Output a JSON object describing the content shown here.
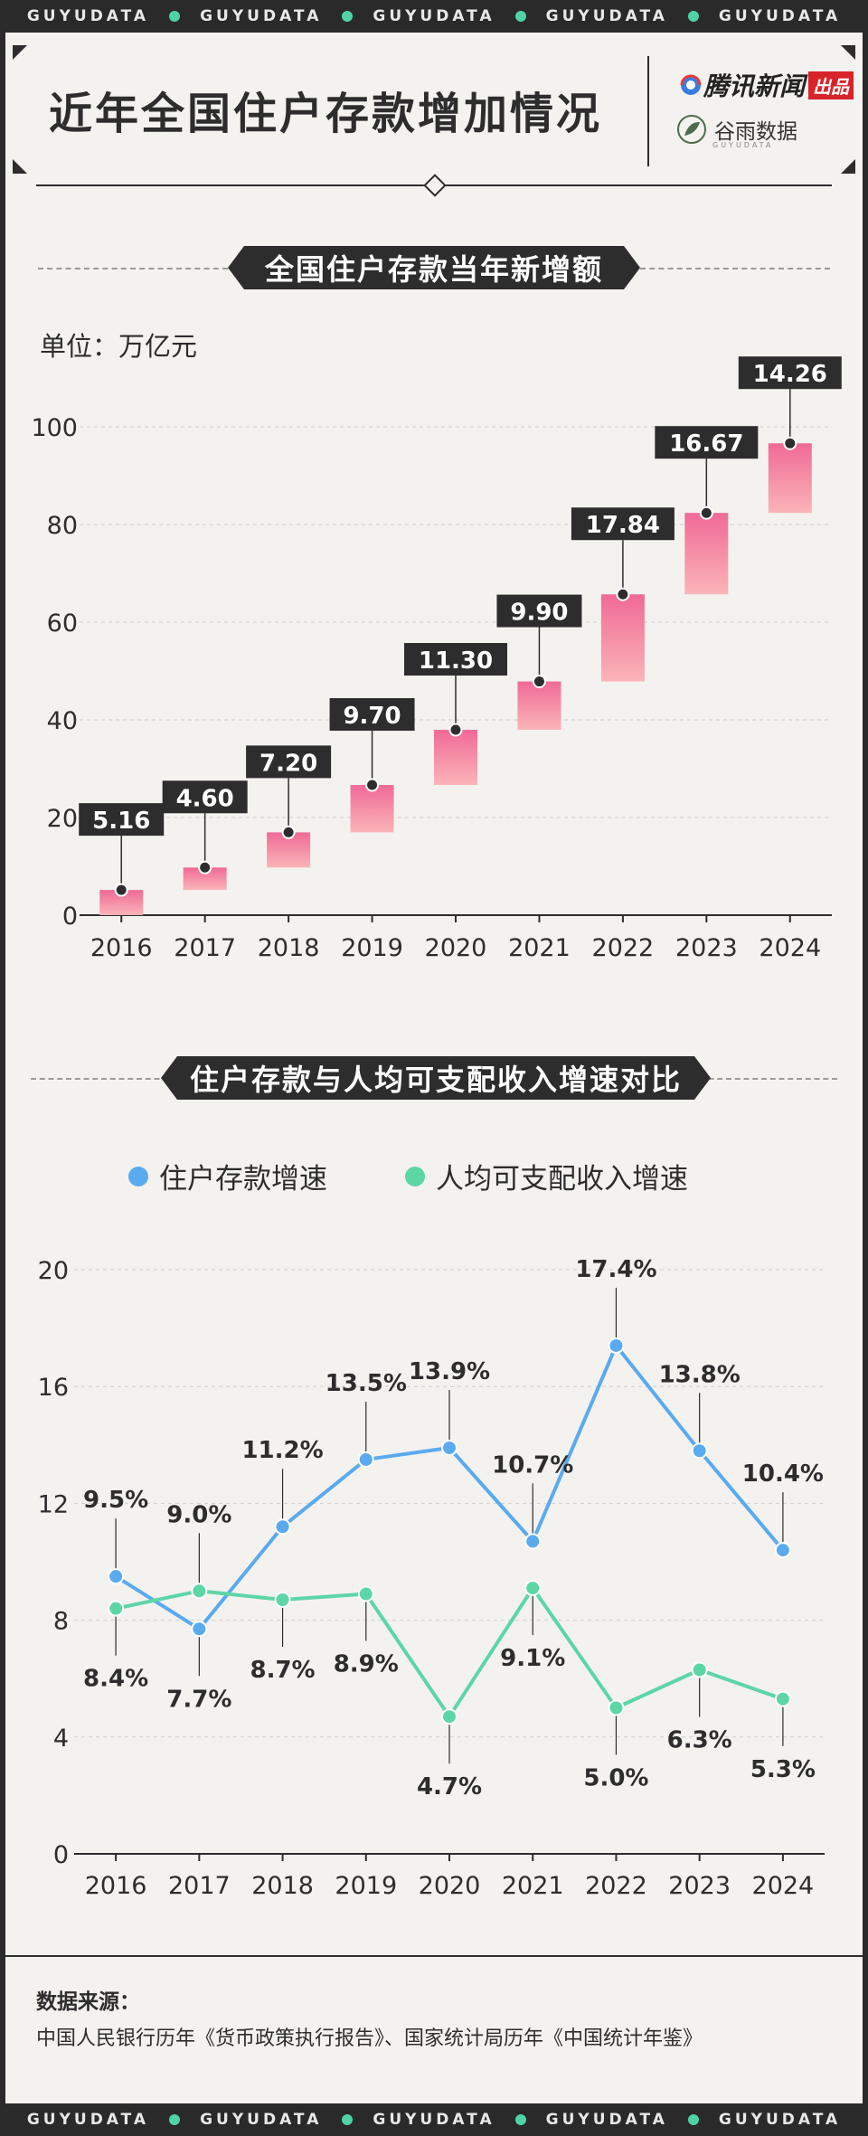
{
  "ticker": {
    "word": "GUYUDATA",
    "count": 5
  },
  "header": {
    "title": "近年全国住户存款增加情况",
    "brand_main": "腾讯新闻",
    "brand_tag": "出品",
    "brand_data": "谷雨数据",
    "brand_data_sub": "GUYUDATA"
  },
  "section1": {
    "title": "全国住户存款当年新增额",
    "unit": "单位：万亿元"
  },
  "section2": {
    "title": "住户存款与人均可支配收入增速对比"
  },
  "colors": {
    "dark": "#2d2d2d",
    "pink_top": "#f06a96",
    "pink_bottom": "#fbb4b8",
    "blue": "#5aaaf0",
    "green": "#5dd6a6",
    "mint": "#4fd3a4"
  },
  "chart_data": [
    {
      "type": "bar",
      "subtype": "waterfall",
      "title": "全国住户存款当年新增额",
      "ylabel": "单位：万亿元",
      "categories": [
        "2016",
        "2017",
        "2018",
        "2019",
        "2020",
        "2021",
        "2022",
        "2023",
        "2024"
      ],
      "values": [
        5.16,
        4.6,
        7.2,
        9.7,
        11.3,
        9.9,
        17.84,
        16.67,
        14.26
      ],
      "value_labels": [
        "5.16",
        "4.60",
        "7.20",
        "9.70",
        "11.30",
        "9.90",
        "17.84",
        "16.67",
        "14.26"
      ],
      "yticks": [
        0,
        20,
        40,
        60,
        80,
        100
      ],
      "ylim": [
        0,
        100
      ]
    },
    {
      "type": "line",
      "title": "住户存款与人均可支配收入增速对比",
      "categories": [
        "2016",
        "2017",
        "2018",
        "2019",
        "2020",
        "2021",
        "2022",
        "2023",
        "2024"
      ],
      "yticks": [
        0,
        4,
        8,
        12,
        16,
        20
      ],
      "ylim": [
        0,
        20
      ],
      "series": [
        {
          "name": "住户存款增速",
          "color": "#5aaaf0",
          "values": [
            9.5,
            7.7,
            11.2,
            13.5,
            13.9,
            10.7,
            17.4,
            13.8,
            10.4
          ],
          "labels": [
            "9.5%",
            "7.7%",
            "11.2%",
            "13.5%",
            "13.9%",
            "10.7%",
            "17.4%",
            "13.8%",
            "10.4%"
          ]
        },
        {
          "name": "人均可支配收入增速",
          "color": "#5dd6a6",
          "values": [
            8.4,
            9.0,
            8.7,
            8.9,
            4.7,
            9.1,
            5.0,
            6.3,
            5.3
          ],
          "labels": [
            "8.4%",
            "9.0%",
            "8.7%",
            "8.9%",
            "4.7%",
            "9.1%",
            "5.0%",
            "6.3%",
            "5.3%"
          ]
        }
      ]
    }
  ],
  "source": {
    "heading": "数据来源：",
    "text": "中国人民银行历年《货币政策执行报告》、国家统计局历年《中国统计年鉴》"
  }
}
